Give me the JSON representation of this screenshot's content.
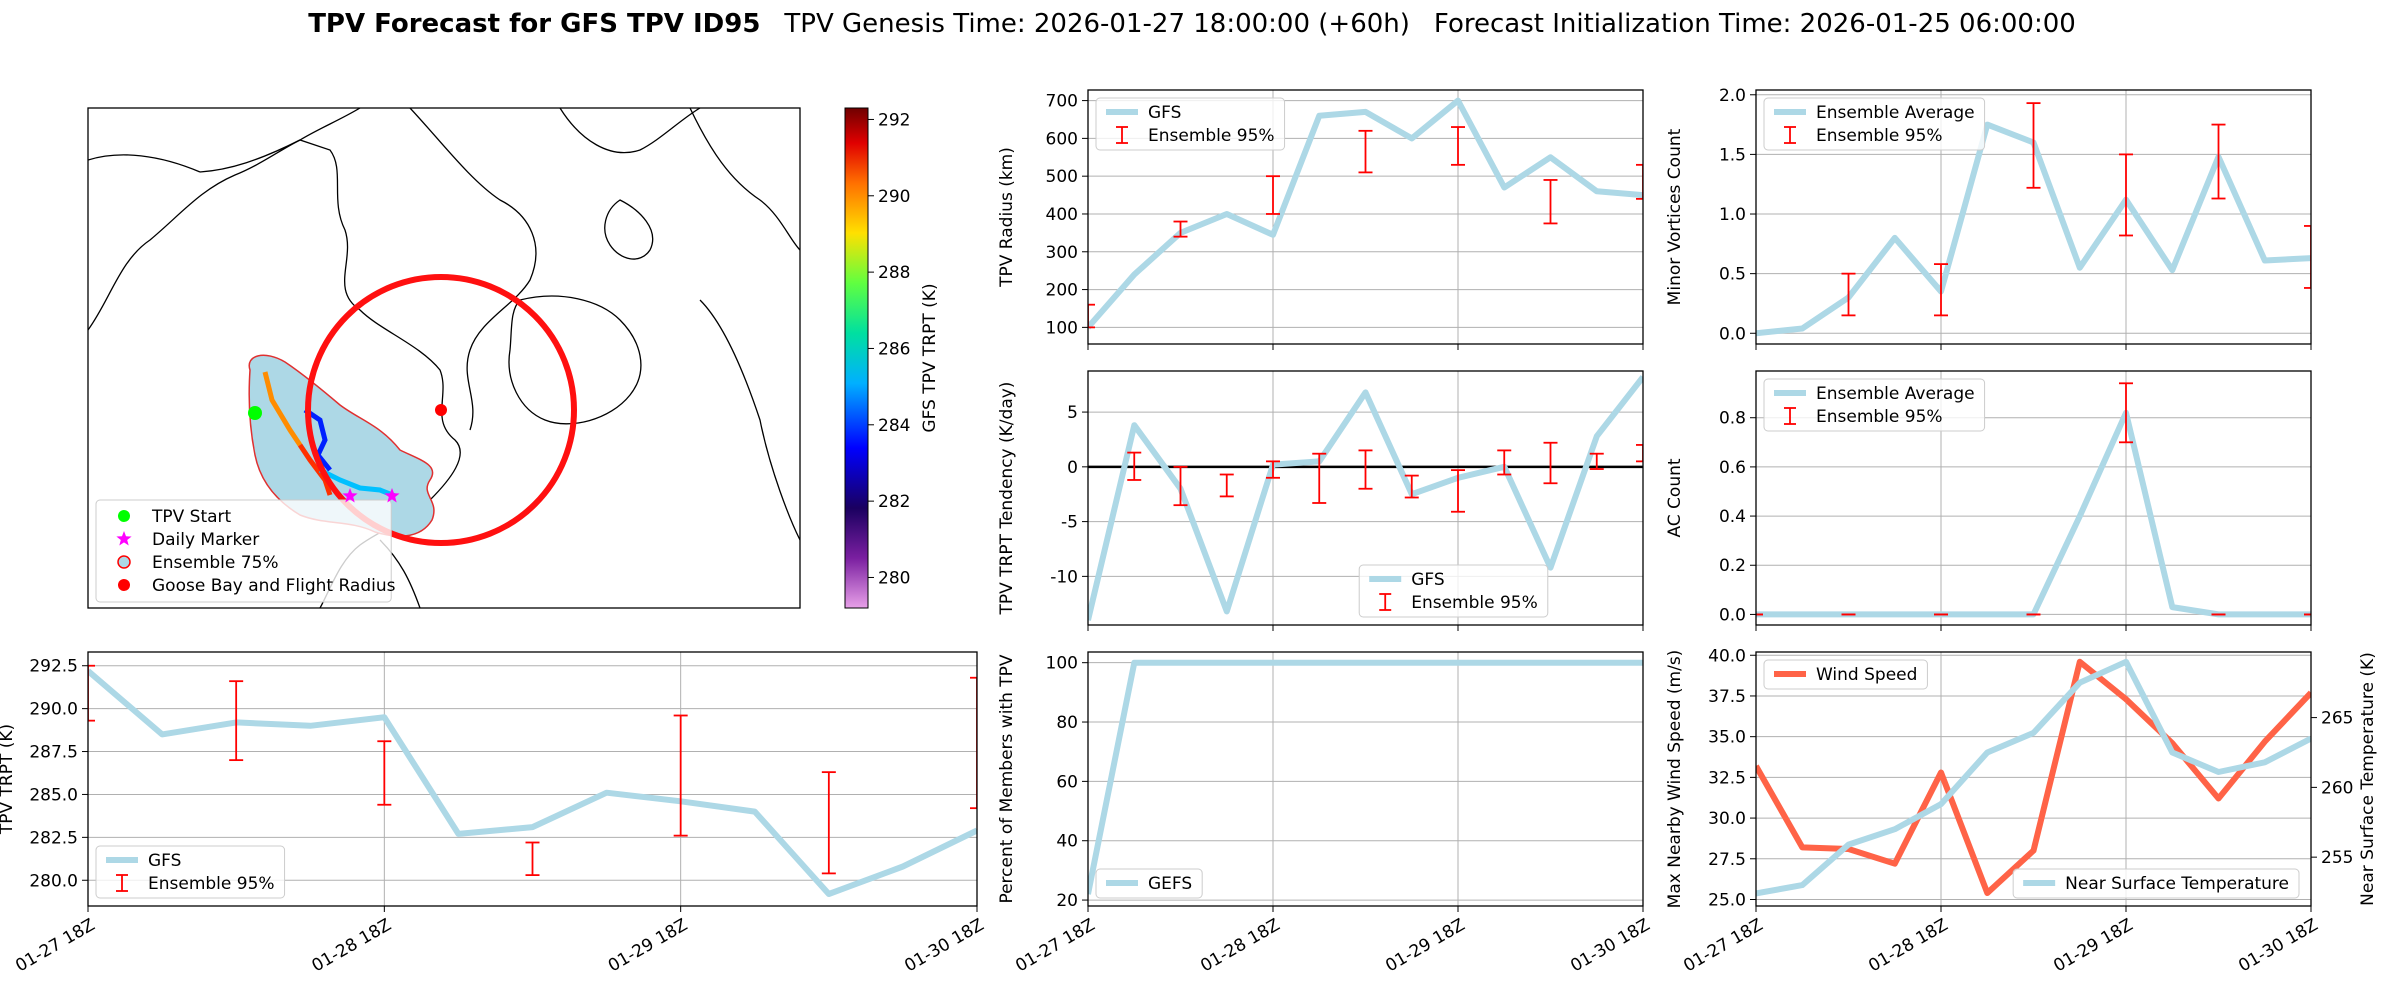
{
  "figure": {
    "title": "TPV Forecast for GFS TPV ID95",
    "genesis": "TPV Genesis Time: 2026-01-27 18:00:00 (+60h)",
    "init": "Forecast Initialization Time: 2026-01-25 06:00:00"
  },
  "chart_data": [
    {
      "type": "map",
      "legend": [
        {
          "name": "TPV Start",
          "color": "#00ff00",
          "marker": "circle"
        },
        {
          "name": "Daily Marker",
          "color": "#ff00ff",
          "marker": "star"
        },
        {
          "name": "Ensemble 75%",
          "color": "#add8e6",
          "edgecolor": "#ff0000",
          "marker": "circle"
        },
        {
          "name": "Goose Bay and Flight Radius",
          "color": "#ff0000",
          "marker": "circle"
        }
      ],
      "colorbar": {
        "label": "GFS TPV TRPT (K)",
        "lim": [
          279.2,
          292.3
        ],
        "ticks": [
          280,
          282,
          284,
          286,
          288,
          290,
          292
        ]
      }
    },
    {
      "type": "line",
      "ylabel": "TPV Radius (km)",
      "grid": true,
      "legend_loc": "upper left",
      "show_xtick_labels": false,
      "x": [
        "01-27 18Z",
        "01-28 00Z",
        "01-28 06Z",
        "01-28 12Z",
        "01-28 18Z",
        "01-29 00Z",
        "01-29 06Z",
        "01-29 12Z",
        "01-29 18Z",
        "01-30 00Z",
        "01-30 06Z",
        "01-30 12Z",
        "01-30 18Z"
      ],
      "xlim": [
        "01-27 18Z",
        "01-30 18Z"
      ],
      "xticks": [
        "01-27 18Z",
        "01-28 18Z",
        "01-29 18Z",
        "01-30 18Z"
      ],
      "ylim": [
        56,
        728
      ],
      "yticks": [
        100,
        200,
        300,
        400,
        500,
        600,
        700
      ],
      "series": [
        {
          "name": "GFS",
          "type": "line",
          "color": "#add8e6",
          "values": [
            100,
            240,
            350,
            400,
            345,
            660,
            670,
            600,
            700,
            470,
            550,
            460,
            450
          ]
        },
        {
          "name": "Ensemble 95%",
          "type": "errorbar",
          "color": "#ff0000",
          "x": [
            "01-27 18Z",
            "01-28 06Z",
            "01-28 18Z",
            "01-29 06Z",
            "01-29 18Z",
            "01-30 06Z",
            "01-30 18Z"
          ],
          "low": [
            100,
            340,
            400,
            510,
            530,
            375,
            440
          ],
          "high": [
            160,
            380,
            500,
            620,
            630,
            490,
            530
          ]
        }
      ]
    },
    {
      "type": "line",
      "ylabel": "Minor Vortices Count",
      "grid": true,
      "legend_loc": "upper left",
      "show_xtick_labels": false,
      "x": [
        "01-27 18Z",
        "01-28 00Z",
        "01-28 06Z",
        "01-28 12Z",
        "01-28 18Z",
        "01-29 00Z",
        "01-29 06Z",
        "01-29 12Z",
        "01-29 18Z",
        "01-30 00Z",
        "01-30 06Z",
        "01-30 12Z",
        "01-30 18Z"
      ],
      "xlim": [
        "01-27 18Z",
        "01-30 18Z"
      ],
      "xticks": [
        "01-27 18Z",
        "01-28 18Z",
        "01-29 18Z",
        "01-30 18Z"
      ],
      "ylim": [
        -0.09,
        2.04
      ],
      "yticks": [
        {
          "value": 0,
          "label": "0.0"
        },
        0.5,
        {
          "value": 1,
          "label": "1.0"
        },
        1.5,
        {
          "value": 2,
          "label": "2.0"
        }
      ],
      "series": [
        {
          "name": "Ensemble Average",
          "type": "line",
          "color": "#add8e6",
          "values": [
            0,
            0.04,
            0.3,
            0.8,
            0.35,
            1.75,
            1.6,
            0.55,
            1.12,
            0.53,
            1.48,
            0.61,
            0.63
          ]
        },
        {
          "name": "Ensemble 95%",
          "type": "errorbar",
          "color": "#ff0000",
          "x": [
            "01-28 06Z",
            "01-28 18Z",
            "01-29 06Z",
            "01-29 18Z",
            "01-30 06Z",
            "01-30 18Z"
          ],
          "low": [
            0.15,
            0.15,
            1.22,
            0.82,
            1.13,
            0.38
          ],
          "high": [
            0.5,
            0.58,
            1.93,
            1.5,
            1.75,
            0.9
          ]
        }
      ]
    },
    {
      "type": "line",
      "ylabel": "TPV TRPT Tendency (K/day)",
      "grid": true,
      "legend_loc": "lower center",
      "show_xtick_labels": false,
      "hline": 0,
      "hline_color": "#000000",
      "x": [
        "01-27 18Z",
        "01-28 00Z",
        "01-28 06Z",
        "01-28 12Z",
        "01-28 18Z",
        "01-29 00Z",
        "01-29 06Z",
        "01-29 12Z",
        "01-29 18Z",
        "01-30 00Z",
        "01-30 06Z",
        "01-30 12Z",
        "01-30 18Z"
      ],
      "xlim": [
        "01-27 18Z",
        "01-30 18Z"
      ],
      "xticks": [
        "01-27 18Z",
        "01-28 18Z",
        "01-29 18Z",
        "01-30 18Z"
      ],
      "ylim": [
        -14.44,
        8.75
      ],
      "yticks": [
        -10,
        -5,
        0,
        5
      ],
      "series": [
        {
          "name": "GFS",
          "type": "line",
          "color": "#add8e6",
          "values": [
            -14,
            3.8,
            -2,
            -13.2,
            0.2,
            0.5,
            6.8,
            -2.5,
            -1,
            0,
            -9.2,
            2.8,
            8.2
          ]
        },
        {
          "name": "Ensemble 95%",
          "type": "errorbar",
          "color": "#ff0000",
          "x": [
            "01-28 00Z",
            "01-28 06Z",
            "01-28 12Z",
            "01-28 18Z",
            "01-29 00Z",
            "01-29 06Z",
            "01-29 12Z",
            "01-29 18Z",
            "01-30 00Z",
            "01-30 06Z",
            "01-30 12Z",
            "01-30 18Z"
          ],
          "low": [
            -1.2,
            -3.5,
            -2.7,
            -1,
            -3.3,
            -2,
            -2.8,
            -4.1,
            -0.7,
            -1.5,
            -0.2,
            0.5
          ],
          "high": [
            1.3,
            0,
            -0.7,
            0.5,
            1.2,
            1.5,
            -0.8,
            -0.3,
            1.5,
            2.2,
            1.2,
            2
          ]
        }
      ]
    },
    {
      "type": "line",
      "ylabel": "AC Count",
      "grid": true,
      "legend_loc": "upper left",
      "show_xtick_labels": false,
      "x": [
        "01-27 18Z",
        "01-28 00Z",
        "01-28 06Z",
        "01-28 12Z",
        "01-28 18Z",
        "01-29 00Z",
        "01-29 06Z",
        "01-29 12Z",
        "01-29 18Z",
        "01-30 00Z",
        "01-30 06Z",
        "01-30 12Z",
        "01-30 18Z"
      ],
      "xlim": [
        "01-27 18Z",
        "01-30 18Z"
      ],
      "xticks": [
        "01-27 18Z",
        "01-28 18Z",
        "01-29 18Z",
        "01-30 18Z"
      ],
      "ylim": [
        -0.043,
        0.99
      ],
      "yticks": [
        {
          "value": 0,
          "label": "0.0"
        },
        0.2,
        0.4,
        0.6,
        0.8
      ],
      "series": [
        {
          "name": "Ensemble Average",
          "type": "line",
          "color": "#add8e6",
          "values": [
            0,
            0,
            0,
            0,
            0,
            0,
            0,
            0.4,
            0.82,
            0.03,
            0,
            0,
            0
          ]
        },
        {
          "name": "Ensemble 95%",
          "type": "errorbar",
          "color": "#ff0000",
          "x": [
            "01-27 18Z",
            "01-28 06Z",
            "01-28 18Z",
            "01-29 06Z",
            "01-29 18Z",
            "01-30 06Z",
            "01-30 18Z"
          ],
          "low": [
            0,
            0,
            0,
            0,
            0.7,
            0,
            0
          ],
          "high": [
            0,
            0,
            0,
            0,
            0.94,
            0,
            0
          ]
        }
      ]
    },
    {
      "type": "line",
      "ylabel": "TPV TRPT (K)",
      "grid": true,
      "legend_loc": "lower left",
      "x": [
        "01-27 18Z",
        "01-28 00Z",
        "01-28 06Z",
        "01-28 12Z",
        "01-28 18Z",
        "01-29 00Z",
        "01-29 06Z",
        "01-29 12Z",
        "01-29 18Z",
        "01-30 00Z",
        "01-30 06Z",
        "01-30 12Z",
        "01-30 18Z"
      ],
      "xlim": [
        "01-27 18Z",
        "01-30 18Z"
      ],
      "xticks": [
        "01-27 18Z",
        "01-28 18Z",
        "01-29 18Z",
        "01-30 18Z"
      ],
      "ylim": [
        278.5,
        293.3
      ],
      "yticks": [
        {
          "value": 280,
          "label": "280.0"
        },
        282.5,
        {
          "value": 285,
          "label": "285.0"
        },
        287.5,
        {
          "value": 290,
          "label": "290.0"
        },
        292.5
      ],
      "series": [
        {
          "name": "GFS",
          "type": "line",
          "color": "#add8e6",
          "values": [
            292.2,
            288.5,
            289.2,
            289.0,
            289.5,
            282.7,
            283.1,
            285.1,
            284.6,
            284.0,
            279.2,
            280.8,
            282.9
          ]
        },
        {
          "name": "Ensemble 95%",
          "type": "errorbar",
          "color": "#ff0000",
          "x": [
            "01-27 18Z",
            "01-28 06Z",
            "01-28 18Z",
            "01-29 06Z",
            "01-29 18Z",
            "01-30 06Z",
            "01-30 18Z"
          ],
          "low": [
            289.3,
            287,
            284.4,
            280.3,
            282.6,
            280.4,
            284.2
          ],
          "high": [
            292.5,
            291.6,
            288.1,
            282.2,
            289.6,
            286.3,
            291.8
          ]
        }
      ]
    },
    {
      "type": "line",
      "ylabel": "Percent of Members with TPV",
      "grid": true,
      "legend_loc": "lower left",
      "x": [
        "01-27 18Z",
        "01-28 00Z",
        "01-28 06Z",
        "01-28 12Z",
        "01-28 18Z",
        "01-29 00Z",
        "01-29 06Z",
        "01-29 12Z",
        "01-29 18Z",
        "01-30 00Z",
        "01-30 06Z",
        "01-30 12Z",
        "01-30 18Z"
      ],
      "xlim": [
        "01-27 18Z",
        "01-30 18Z"
      ],
      "xticks": [
        "01-27 18Z",
        "01-28 18Z",
        "01-29 18Z",
        "01-30 18Z"
      ],
      "ylim": [
        18,
        103.6
      ],
      "yticks": [
        20,
        40,
        60,
        80,
        100
      ],
      "series": [
        {
          "name": "GEFS",
          "type": "line",
          "color": "#add8e6",
          "values": [
            22,
            100,
            100,
            100,
            100,
            100,
            100,
            100,
            100,
            100,
            100,
            100,
            100
          ]
        }
      ]
    },
    {
      "type": "line",
      "ylabel": "Max Nearby Wind Speed (m/s)",
      "ylabel_color": "#ff6347",
      "y2label": "Near Surface Temperature (K)",
      "y2label_color": "#4169e1",
      "grid": true,
      "legend_loc": "upper left",
      "x": [
        "01-27 18Z",
        "01-28 00Z",
        "01-28 06Z",
        "01-28 12Z",
        "01-28 18Z",
        "01-29 00Z",
        "01-29 06Z",
        "01-29 12Z",
        "01-29 18Z",
        "01-30 00Z",
        "01-30 06Z",
        "01-30 12Z",
        "01-30 18Z"
      ],
      "xlim": [
        "01-27 18Z",
        "01-30 18Z"
      ],
      "xticks": [
        "01-27 18Z",
        "01-28 18Z",
        "01-29 18Z",
        "01-30 18Z"
      ],
      "ylim": [
        24.6,
        40.2
      ],
      "yticks": [
        {
          "value": 25,
          "label": "25.0"
        },
        27.5,
        {
          "value": 30,
          "label": "30.0"
        },
        32.5,
        {
          "value": 35,
          "label": "35.0"
        },
        37.5,
        {
          "value": 40,
          "label": "40.0"
        }
      ],
      "y2lim": [
        251.5,
        269.7
      ],
      "y2ticks": [
        255,
        260,
        265
      ],
      "series": [
        {
          "name": "Wind Speed",
          "type": "line",
          "color": "#ff6347",
          "values": [
            33.2,
            28.2,
            28.1,
            27.2,
            32.8,
            25.4,
            28.0,
            39.6,
            37.3,
            34.6,
            31.2,
            34.7,
            37.7
          ]
        },
        {
          "name": "Near Surface Temperature",
          "type": "line",
          "axis": "y2",
          "legend_loc": "lower right",
          "color": "#add8e6",
          "values": [
            252.4,
            253.0,
            255.9,
            257.0,
            258.8,
            262.5,
            263.9,
            267.5,
            269.0,
            262.5,
            261.1,
            261.8,
            263.5
          ]
        }
      ]
    }
  ]
}
